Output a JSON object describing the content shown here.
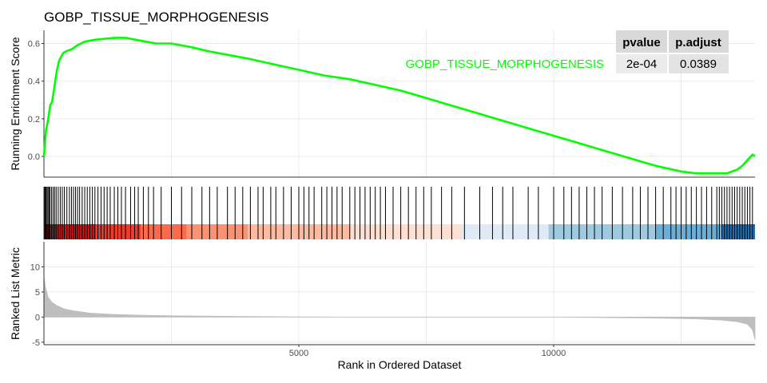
{
  "chart_data": {
    "type": "line",
    "title": "GOBP_TISSUE_MORPHOGENESIS",
    "colors": {
      "curve": "#00ff00",
      "rank_bars": "#bebebe",
      "hits": "#000000",
      "grid": "#ebebeb"
    },
    "enrichment_panel": {
      "ylabel": "Running Enrichment Score",
      "ylim": [
        -0.11,
        0.67
      ],
      "yticks": [
        0.0,
        0.2,
        0.4,
        0.6
      ],
      "ytick_labels": [
        "0.0",
        "0.2",
        "0.4",
        "0.6"
      ],
      "series": [
        {
          "name": "GOBP_TISSUE_MORPHOGENESIS",
          "x": [
            0,
            40,
            80,
            120,
            160,
            200,
            250,
            300,
            380,
            450,
            550,
            650,
            800,
            1000,
            1200,
            1400,
            1600,
            1800,
            2000,
            2200,
            2500,
            2700,
            2900,
            3200,
            3600,
            4000,
            4500,
            5000,
            5500,
            6000,
            6500,
            7000,
            7500,
            8000,
            8500,
            9000,
            9500,
            10000,
            10500,
            11000,
            11500,
            12000,
            12500,
            12800,
            13000,
            13200,
            13400,
            13500,
            13600,
            13700,
            13800,
            13900,
            13950
          ],
          "y": [
            0.0,
            0.14,
            0.19,
            0.27,
            0.29,
            0.36,
            0.45,
            0.51,
            0.55,
            0.56,
            0.57,
            0.59,
            0.61,
            0.62,
            0.625,
            0.63,
            0.63,
            0.62,
            0.61,
            0.6,
            0.6,
            0.59,
            0.58,
            0.56,
            0.54,
            0.52,
            0.49,
            0.46,
            0.43,
            0.41,
            0.38,
            0.35,
            0.31,
            0.27,
            0.23,
            0.19,
            0.15,
            0.11,
            0.07,
            0.03,
            -0.01,
            -0.05,
            -0.08,
            -0.09,
            -0.09,
            -0.09,
            -0.09,
            -0.08,
            -0.07,
            -0.05,
            -0.02,
            0.01,
            0.0
          ]
        }
      ]
    },
    "hits_panel": {
      "gene_hit_ranks": [
        10,
        25,
        40,
        60,
        80,
        100,
        120,
        150,
        180,
        210,
        240,
        280,
        320,
        360,
        400,
        450,
        500,
        540,
        580,
        620,
        660,
        700,
        750,
        800,
        850,
        900,
        950,
        1000,
        1060,
        1120,
        1180,
        1240,
        1300,
        1380,
        1450,
        1520,
        1600,
        1700,
        1780,
        1850,
        1950,
        2050,
        2150,
        2300,
        2500,
        2700,
        2900,
        3100,
        3250,
        3400,
        3600,
        3750,
        3900,
        4050,
        4200,
        4300,
        4450,
        4550,
        4700,
        4850,
        5000,
        5100,
        5200,
        5300,
        5450,
        5550,
        5650,
        5750,
        5850,
        6000,
        6100,
        6200,
        6300,
        6400,
        6500,
        6600,
        6700,
        6850,
        7000,
        7150,
        7300,
        7450,
        7600,
        7800,
        8000,
        8250,
        8550,
        8800,
        9000,
        9200,
        9500,
        9700,
        10000,
        10200,
        10350,
        10500,
        10650,
        10800,
        10950,
        11150,
        11350,
        11550,
        11700,
        11850,
        12000,
        12150,
        12300,
        12400,
        12500,
        12600,
        12700,
        12800,
        12900,
        13000,
        13100,
        13200,
        13250,
        13300,
        13350,
        13400,
        13450,
        13500,
        13550,
        13600,
        13650,
        13700,
        13750,
        13800,
        13850,
        13900
      ],
      "color_band": [
        {
          "from": 0,
          "to": 1000,
          "color": "#cb181d"
        },
        {
          "from": 1000,
          "to": 1900,
          "color": "#ef3b2c"
        },
        {
          "from": 1900,
          "to": 2800,
          "color": "#fb6a4a"
        },
        {
          "from": 2800,
          "to": 4000,
          "color": "#fc9272"
        },
        {
          "from": 4000,
          "to": 6000,
          "color": "#fcbba1"
        },
        {
          "from": 6000,
          "to": 8200,
          "color": "#fee0d2"
        },
        {
          "from": 8200,
          "to": 9900,
          "color": "#deebf7"
        },
        {
          "from": 9900,
          "to": 12000,
          "color": "#9ecae1"
        },
        {
          "from": 12000,
          "to": 13300,
          "color": "#6baed6"
        },
        {
          "from": 13300,
          "to": 13950,
          "color": "#2171b5"
        }
      ]
    },
    "metric_panel": {
      "ylabel": "Ranked List Metric",
      "ylim": [
        -5.5,
        15
      ],
      "yticks": [
        -5,
        0,
        5,
        10
      ],
      "ytick_labels": [
        "-5",
        "0",
        "5",
        "10"
      ],
      "x": [
        0,
        30,
        80,
        150,
        250,
        400,
        600,
        900,
        1300,
        1800,
        2500,
        3500,
        5000,
        6000,
        7000,
        8000,
        8800,
        9200,
        10000,
        11000,
        12000,
        12800,
        13300,
        13600,
        13800,
        13900,
        13950
      ],
      "values": [
        8,
        6,
        4,
        3,
        2.3,
        1.6,
        1.2,
        0.8,
        0.55,
        0.4,
        0.25,
        0.15,
        0.05,
        0.0,
        0.0,
        0.0,
        0.0,
        0.0,
        0.0,
        -0.1,
        -0.2,
        -0.35,
        -0.6,
        -0.9,
        -1.4,
        -2.5,
        -4.5
      ]
    },
    "xlabel": "Rank in Ordered Dataset",
    "xlim": [
      0,
      13950
    ],
    "xticks": [
      5000,
      10000
    ],
    "xtick_labels": [
      "5000",
      "10000"
    ],
    "xgrid": [
      2500,
      5000,
      7500,
      10000,
      12500
    ],
    "table": {
      "columns": [
        "pvalue",
        "p.adjust"
      ],
      "rows": [
        {
          "label": "GOBP_TISSUE_MORPHOGENESIS",
          "values": [
            "2e-04",
            "0.0389"
          ]
        }
      ]
    },
    "legend": "inline-label-top-right",
    "grid": true
  }
}
